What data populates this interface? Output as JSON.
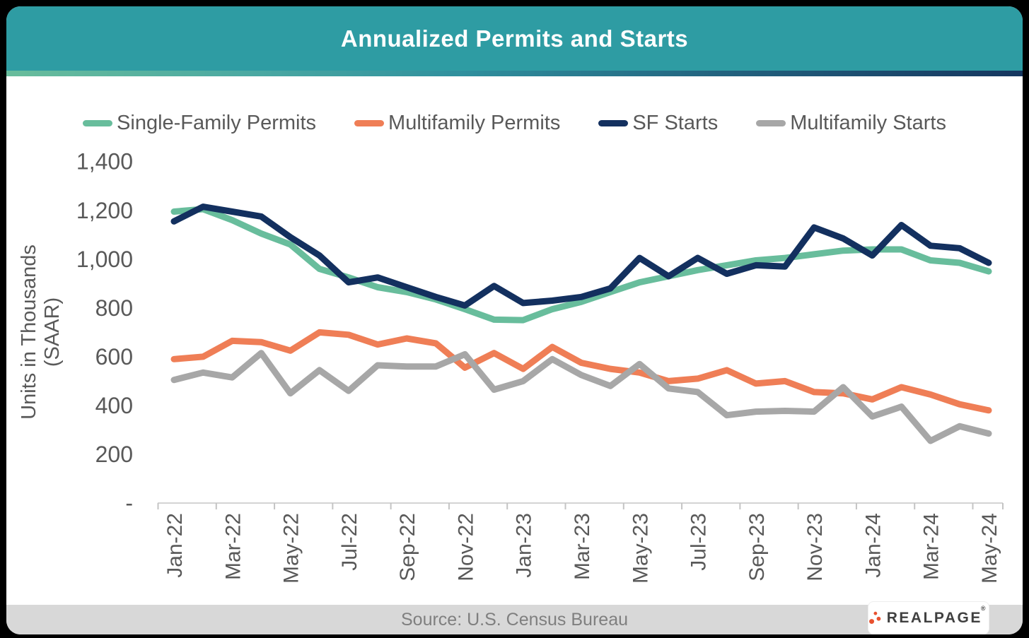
{
  "header": {
    "title": "Annualized Permits and Starts"
  },
  "y_axis_label_line1": "Units in Thousands",
  "y_axis_label_line2": "(SAAR)",
  "footer": {
    "source": "Source: U.S. Census Bureau",
    "logo_text": "REALPAGE",
    "logo_reg_mark": "®"
  },
  "chart_data": {
    "type": "line",
    "title": "Annualized Permits and Starts",
    "ylabel": "Units in Thousands (SAAR)",
    "xlabel": "",
    "ylim": [
      0,
      1400
    ],
    "grid": false,
    "legend_position": "top",
    "ytick_values": [
      1400,
      1200,
      1000,
      800,
      600,
      400,
      200,
      0
    ],
    "ytick_labels": [
      "1,400",
      "1,200",
      "1,000",
      "800",
      "600",
      "400",
      "200",
      "-"
    ],
    "x": [
      "Jan-22",
      "Feb-22",
      "Mar-22",
      "Apr-22",
      "May-22",
      "Jun-22",
      "Jul-22",
      "Aug-22",
      "Sep-22",
      "Oct-22",
      "Nov-22",
      "Dec-22",
      "Jan-23",
      "Feb-23",
      "Mar-23",
      "Apr-23",
      "May-23",
      "Jun-23",
      "Jul-23",
      "Aug-23",
      "Sep-23",
      "Oct-23",
      "Nov-23",
      "Dec-23",
      "Jan-24",
      "Feb-24",
      "Mar-24",
      "Apr-24",
      "May-24"
    ],
    "xtick_shown_every": 2,
    "series": [
      {
        "name": "Single-Family Permits",
        "color": "#68BD9C",
        "values": [
          1195,
          1205,
          1160,
          1105,
          1060,
          960,
          925,
          885,
          865,
          835,
          795,
          752,
          750,
          795,
          825,
          865,
          905,
          930,
          955,
          975,
          995,
          1005,
          1020,
          1035,
          1040,
          1040,
          995,
          985,
          950
        ]
      },
      {
        "name": "Multifamily Permits",
        "color": "#EF7E56",
        "values": [
          590,
          600,
          665,
          660,
          625,
          700,
          690,
          650,
          675,
          655,
          555,
          615,
          550,
          640,
          575,
          550,
          535,
          500,
          510,
          545,
          490,
          500,
          455,
          450,
          425,
          475,
          445,
          405,
          380
        ]
      },
      {
        "name": "SF Starts",
        "color": "#13305F",
        "values": [
          1155,
          1215,
          1195,
          1175,
          1090,
          1015,
          905,
          925,
          885,
          845,
          810,
          890,
          820,
          830,
          845,
          880,
          1005,
          930,
          1005,
          940,
          975,
          970,
          1130,
          1085,
          1015,
          1140,
          1055,
          1045,
          985
        ]
      },
      {
        "name": "Multifamily Starts",
        "color": "#A7A7A7",
        "values": [
          505,
          535,
          515,
          615,
          450,
          545,
          460,
          565,
          560,
          560,
          610,
          465,
          500,
          590,
          525,
          480,
          570,
          470,
          455,
          360,
          375,
          378,
          375,
          475,
          355,
          395,
          255,
          315,
          285
        ]
      }
    ],
    "legend_order": [
      "Single-Family Permits",
      "Multifamily Permits",
      "SF Starts",
      "Multifamily Starts"
    ],
    "draw_order": [
      "Single-Family Permits",
      "Multifamily Permits",
      "Multifamily Starts",
      "SF Starts"
    ]
  }
}
